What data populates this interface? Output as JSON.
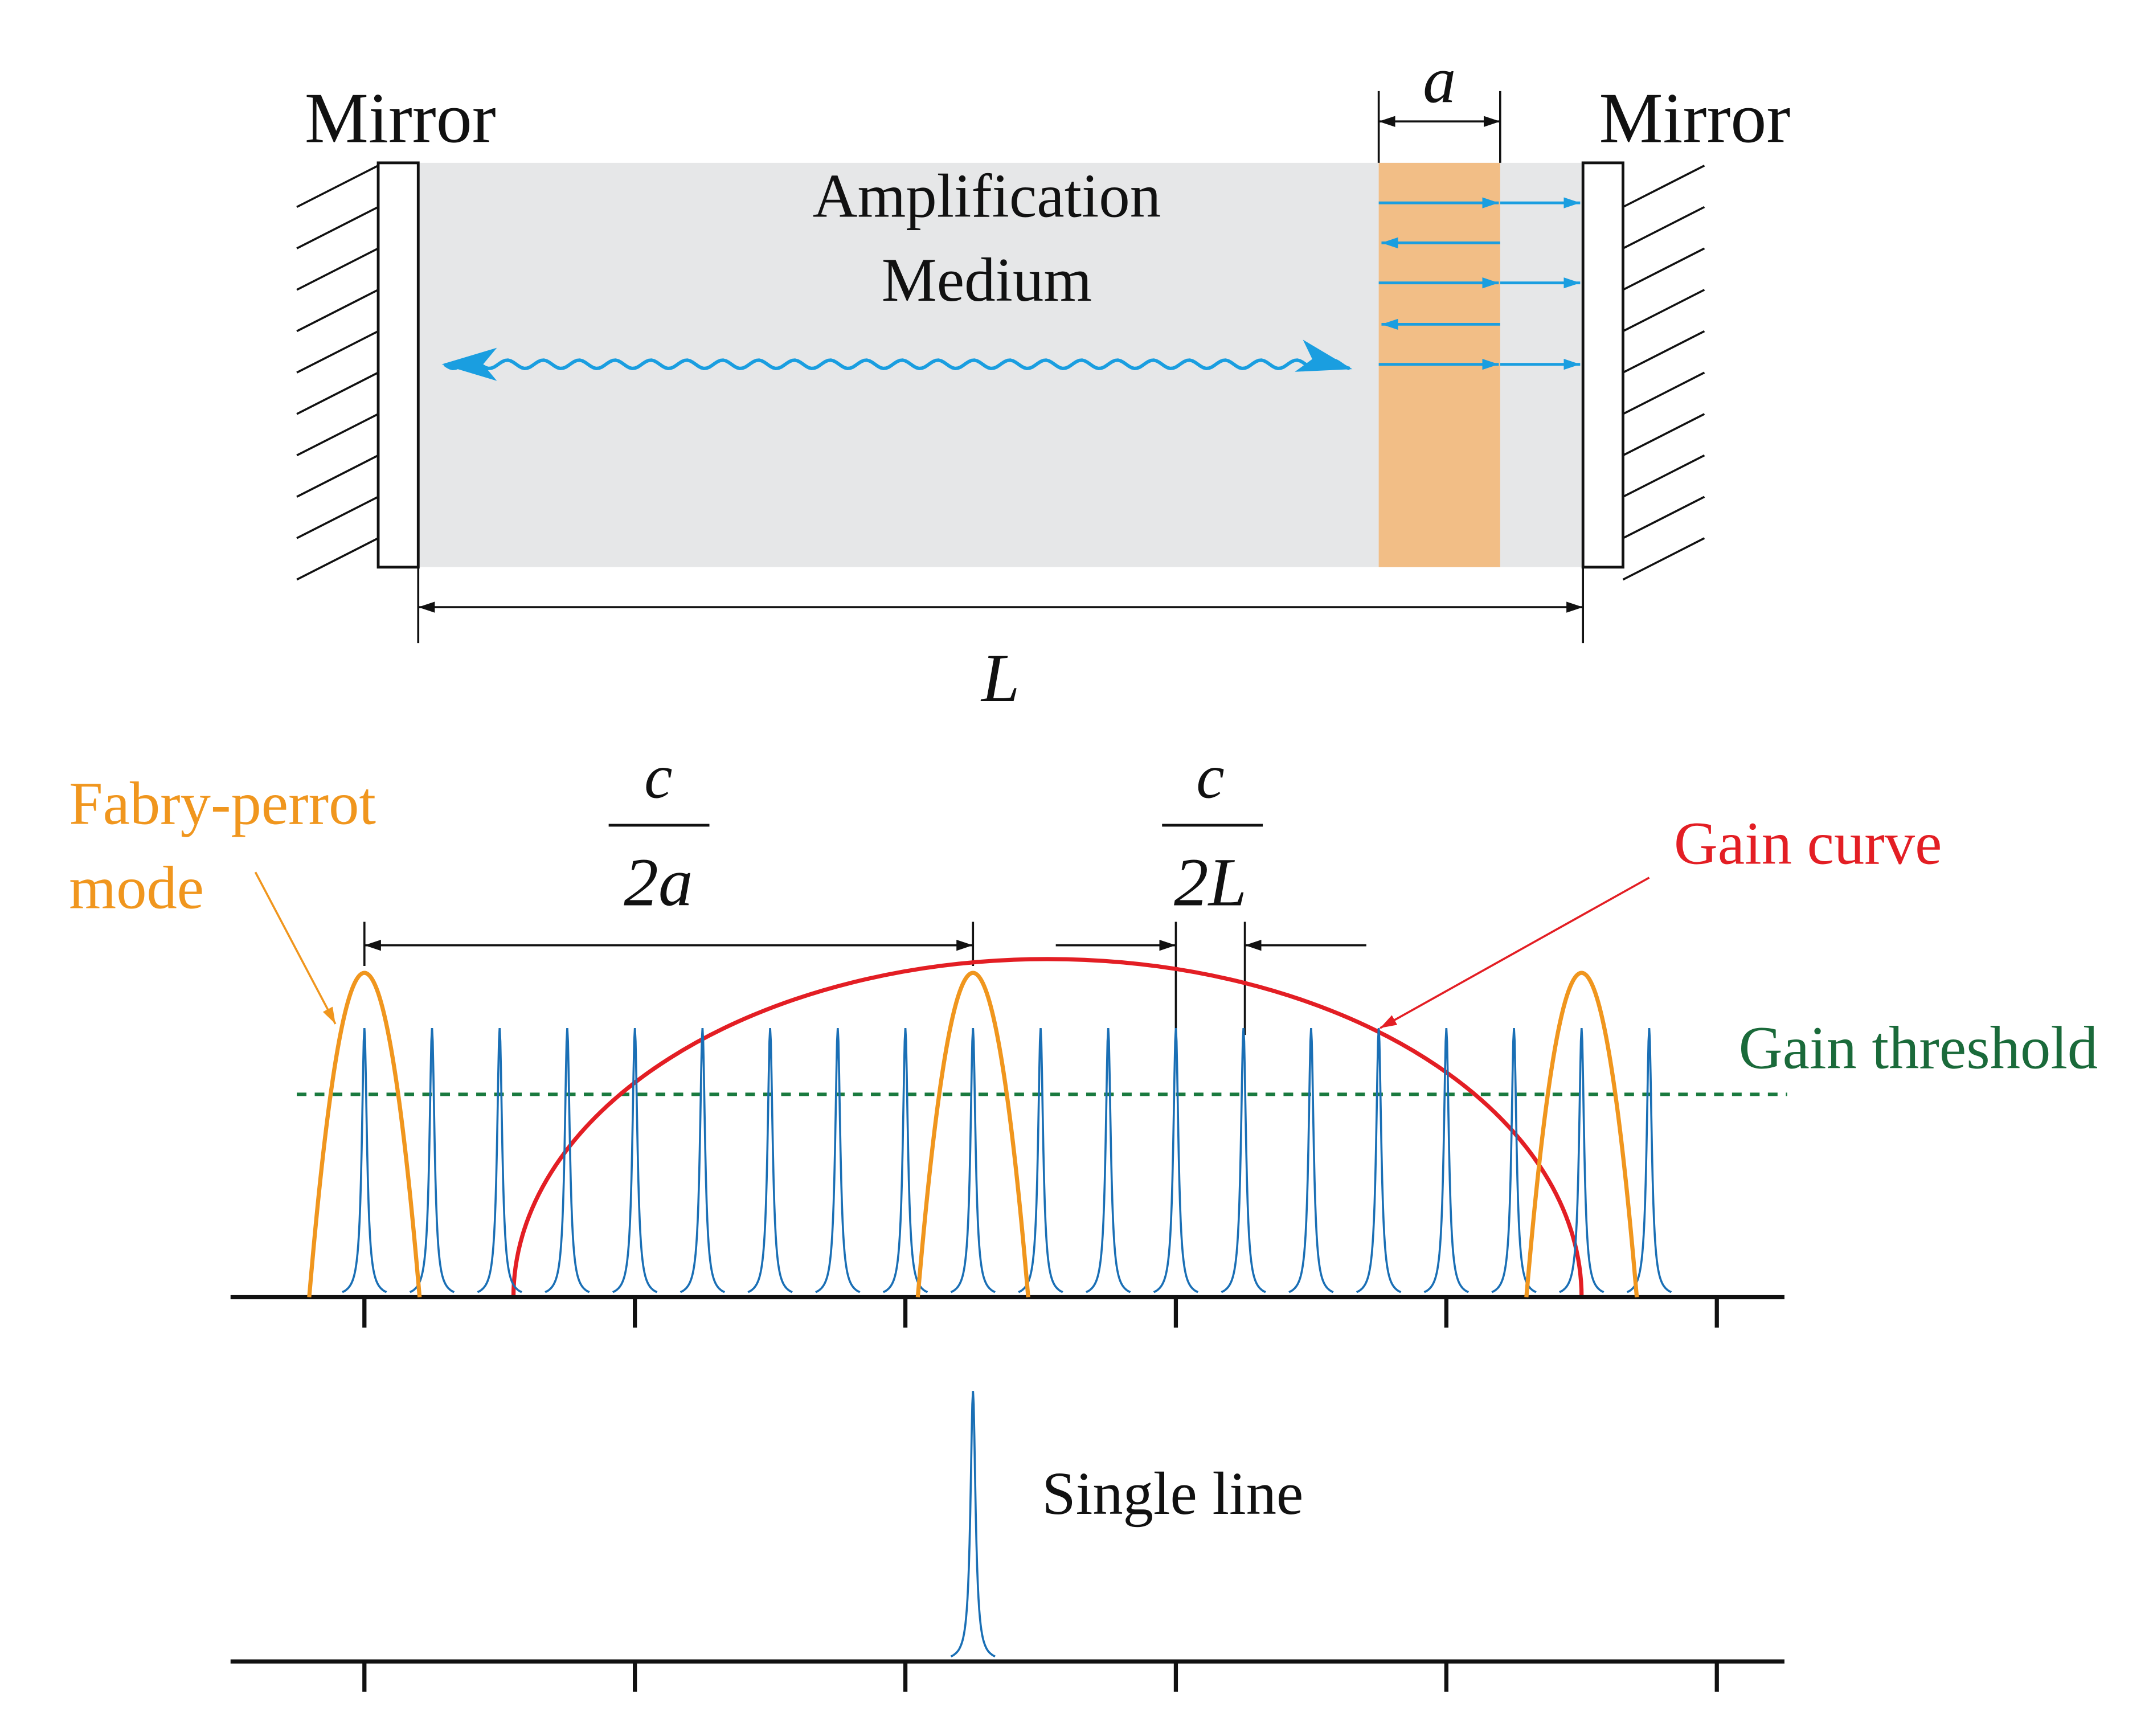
{
  "cavity": {
    "left_mirror": "Mirror",
    "right_mirror": "Mirror",
    "medium": [
      "Amplification",
      "Medium"
    ],
    "etalon_width": "a",
    "cavity_length": "L"
  },
  "spectrum": {
    "fabry_perot_label": [
      "Fabry-perrot",
      "mode"
    ],
    "etalon_spacing": {
      "numerator": "c",
      "denominator": "2a"
    },
    "cavity_spacing": {
      "numerator": "c",
      "denominator": "2L"
    },
    "gain_curve": "Gain curve",
    "gain_threshold": "Gain threshold"
  },
  "output": {
    "label": "Single line"
  }
}
